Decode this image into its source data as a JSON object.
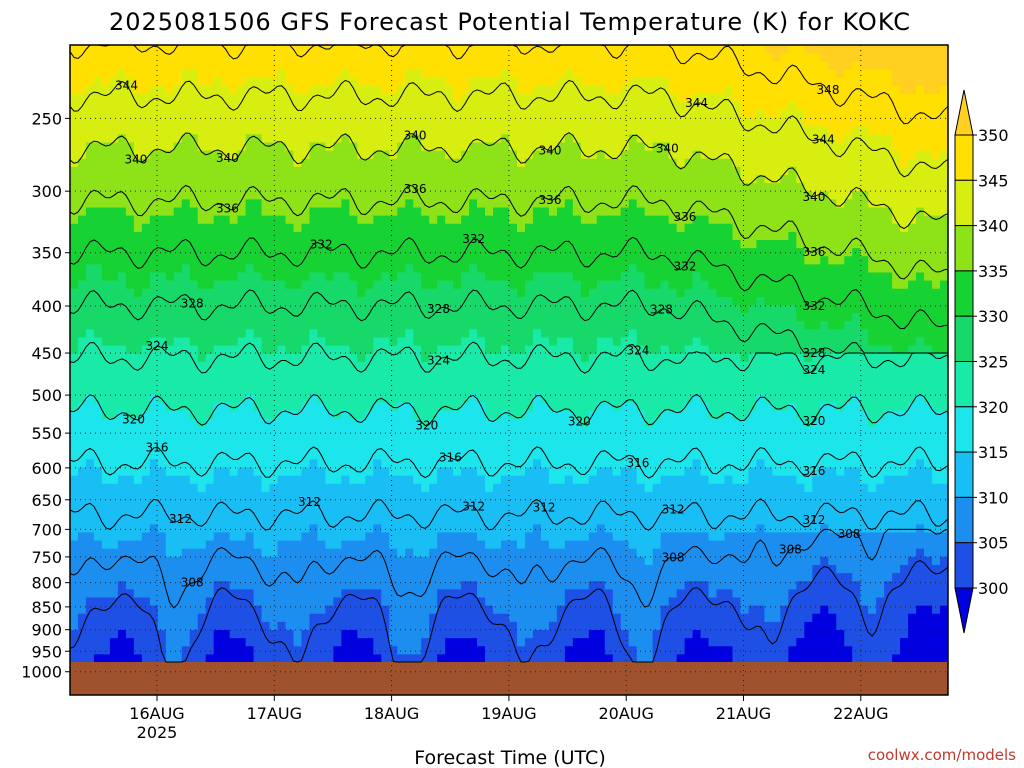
{
  "chart_data": {
    "type": "contour",
    "title": "2025081506 GFS Forecast Potential Temperature (K) for KOKC",
    "xlabel": "Forecast Time (UTC)",
    "credit": "coolwx.com/models",
    "x_ticks": [
      {
        "label": "16AUG",
        "sub": "2025"
      },
      {
        "label": "17AUG",
        "sub": ""
      },
      {
        "label": "18AUG",
        "sub": ""
      },
      {
        "label": "19AUG",
        "sub": ""
      },
      {
        "label": "20AUG",
        "sub": ""
      },
      {
        "label": "21AUG",
        "sub": ""
      },
      {
        "label": "22AUG",
        "sub": ""
      }
    ],
    "y_axis": {
      "unit": "hPa",
      "scale": "log-pressure",
      "range": [
        1000,
        200
      ],
      "ticks": [
        "250",
        "300",
        "350",
        "400",
        "450",
        "500",
        "550",
        "600",
        "650",
        "700",
        "750",
        "800",
        "850",
        "900",
        "950",
        "1000"
      ]
    },
    "colorbar": {
      "ticks": [
        "300",
        "305",
        "310",
        "315",
        "320",
        "325",
        "330",
        "335",
        "340",
        "345",
        "350"
      ],
      "colors": [
        "#0000e0",
        "#1e50e6",
        "#1c8ef0",
        "#19bef5",
        "#1ce6ec",
        "#19eaa8",
        "#16d96a",
        "#16d232",
        "#8ee218",
        "#d8ee10",
        "#ffe000",
        "#ffd020"
      ]
    },
    "ground_color": "#a0522d",
    "contour_interval_K": 4,
    "grid": "dotted",
    "contour_labels": [
      {
        "value": "344",
        "x": "15.74AUG"
      },
      {
        "value": "348",
        "x": "21.72AUG"
      },
      {
        "value": "340",
        "x": "15.82AUG"
      },
      {
        "value": "344",
        "x": "20.6AUG"
      },
      {
        "value": "344",
        "x": "21.68AUG"
      },
      {
        "value": "340",
        "x": "16.6AUG"
      },
      {
        "value": "340",
        "x": "18.2AUG"
      },
      {
        "value": "340",
        "x": "19.35AUG"
      },
      {
        "value": "340",
        "x": "20.35AUG"
      },
      {
        "value": "340",
        "x": "21.6AUG"
      },
      {
        "value": "336",
        "x": "15.3AUG"
      },
      {
        "value": "336",
        "x": "16.6AUG"
      },
      {
        "value": "336",
        "x": "18.2AUG"
      },
      {
        "value": "336",
        "x": "19.35AUG"
      },
      {
        "value": "336",
        "x": "20.5AUG"
      },
      {
        "value": "336",
        "x": "21.6AUG"
      },
      {
        "value": "332",
        "x": "15.1AUG"
      },
      {
        "value": "332",
        "x": "17.4AUG"
      },
      {
        "value": "332",
        "x": "18.7AUG"
      },
      {
        "value": "332",
        "x": "20.5AUG"
      },
      {
        "value": "332",
        "x": "21.6AUG"
      },
      {
        "value": "328",
        "x": "16.3AUG"
      },
      {
        "value": "328",
        "x": "18.4AUG"
      },
      {
        "value": "328",
        "x": "20.3AUG"
      },
      {
        "value": "328",
        "x": "21.6AUG"
      },
      {
        "value": "324",
        "x": "16.0AUG"
      },
      {
        "value": "324",
        "x": "18.4AUG"
      },
      {
        "value": "324",
        "x": "20.1AUG"
      },
      {
        "value": "324",
        "x": "21.6AUG"
      },
      {
        "value": "320",
        "x": "15.8AUG"
      },
      {
        "value": "320",
        "x": "18.3AUG"
      },
      {
        "value": "320",
        "x": "19.6AUG"
      },
      {
        "value": "320",
        "x": "21.6AUG"
      },
      {
        "value": "316",
        "x": "15.2AUG"
      },
      {
        "value": "316",
        "x": "16.0AUG"
      },
      {
        "value": "316",
        "x": "18.5AUG"
      },
      {
        "value": "316",
        "x": "20.1AUG"
      },
      {
        "value": "316",
        "x": "21.6AUG"
      },
      {
        "value": "312",
        "x": "17.3AUG"
      },
      {
        "value": "312",
        "x": "18.7AUG"
      },
      {
        "value": "312",
        "x": "19.3AUG"
      },
      {
        "value": "312",
        "x": "20.4AUG"
      },
      {
        "value": "312",
        "x": "21.6AUG"
      },
      {
        "value": "312",
        "x": "16.2AUG"
      },
      {
        "value": "308",
        "x": "21.4AUG"
      },
      {
        "value": "308",
        "x": "16.3AUG"
      },
      {
        "value": "308",
        "x": "20.4AUG"
      },
      {
        "value": "308",
        "x": "21.9AUG"
      }
    ]
  }
}
